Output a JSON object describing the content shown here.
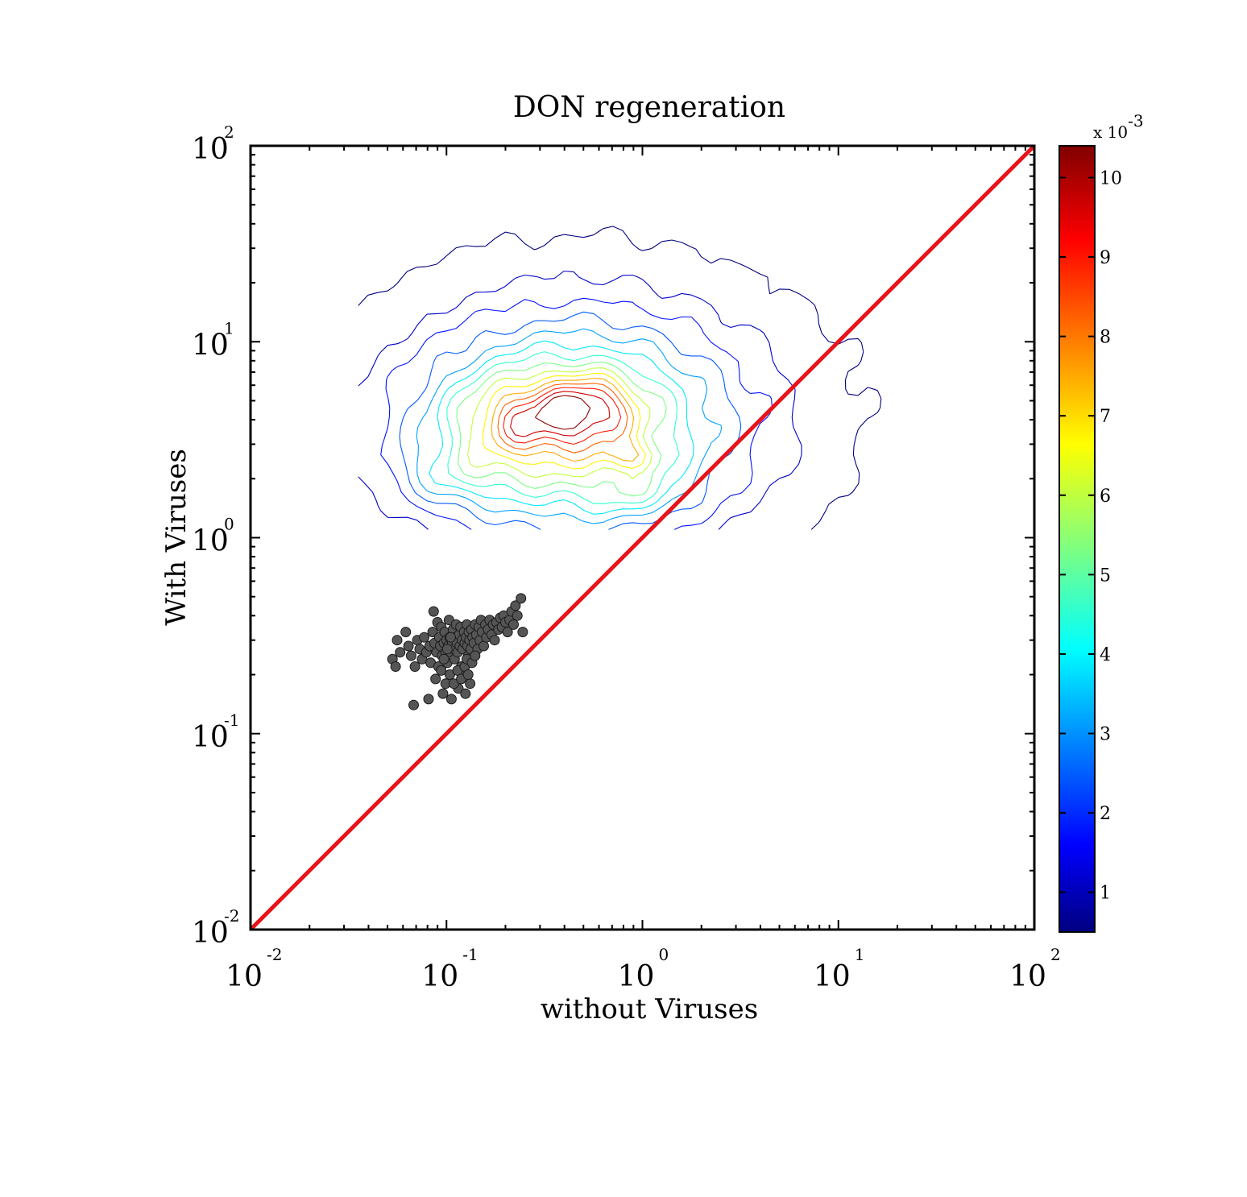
{
  "chart_data": {
    "type": "scatter",
    "title": "DON regeneration",
    "xlabel": "without Viruses",
    "ylabel": "With Viruses",
    "x_scale": "log",
    "y_scale": "log",
    "xlim": [
      0.01,
      100
    ],
    "ylim": [
      0.01,
      100
    ],
    "x_ticks": [
      {
        "base": "10",
        "exp": "-2",
        "value": 0.01
      },
      {
        "base": "10",
        "exp": "-1",
        "value": 0.1
      },
      {
        "base": "10",
        "exp": "0",
        "value": 1
      },
      {
        "base": "10",
        "exp": "1",
        "value": 10
      },
      {
        "base": "10",
        "exp": "2",
        "value": 100
      }
    ],
    "y_ticks": [
      {
        "base": "10",
        "exp": "-2",
        "value": 0.01
      },
      {
        "base": "10",
        "exp": "-1",
        "value": 0.1
      },
      {
        "base": "10",
        "exp": "0",
        "value": 1
      },
      {
        "base": "10",
        "exp": "1",
        "value": 10
      },
      {
        "base": "10",
        "exp": "2",
        "value": 100
      }
    ],
    "reference_line": {
      "type": "1:1",
      "color": "#e8141a",
      "x": [
        0.01,
        100
      ],
      "y": [
        0.01,
        100
      ]
    },
    "contour_density": {
      "colormap": "jet",
      "levels": [
        0.5,
        1.2,
        1.9,
        2.6,
        3.3,
        4.0,
        4.7,
        5.4,
        6.1,
        6.8,
        7.5,
        8.2,
        8.9,
        9.6,
        10.3
      ],
      "clip_min_y": 1.1,
      "peaks": [
        {
          "x": 0.25,
          "y": 4.0,
          "amplitude": 3.2,
          "sx": 0.22,
          "sy": 0.14
        },
        {
          "x": 0.55,
          "y": 4.6,
          "amplitude": 3.4,
          "sx": 0.16,
          "sy": 0.11
        },
        {
          "x": 0.9,
          "y": 2.6,
          "amplitude": 2.2,
          "sx": 0.1,
          "sy": 0.05
        },
        {
          "x": 0.42,
          "y": 3.6,
          "amplitude": 5.8,
          "sx": 0.55,
          "sy": 0.36
        },
        {
          "x": 0.6,
          "y": 5.0,
          "amplitude": 1.2,
          "sx": 0.9,
          "sy": 0.55
        },
        {
          "x": 0.11,
          "y": 2.1,
          "amplitude": 1.4,
          "sx": 0.2,
          "sy": 0.1
        },
        {
          "x": 0.95,
          "y": 1.7,
          "amplitude": 1.3,
          "sx": 0.18,
          "sy": 0.08
        }
      ]
    },
    "colorbar": {
      "multiplier_base": "x 10",
      "multiplier_exp": "-3",
      "min": 0.5,
      "max": 10.4,
      "ticks": [
        "1",
        "2",
        "3",
        "4",
        "5",
        "6",
        "7",
        "8",
        "9",
        "10"
      ]
    },
    "series": [
      {
        "marker": "circle",
        "color": "#555555",
        "points": [
          [
            0.053,
            0.24
          ],
          [
            0.055,
            0.22
          ],
          [
            0.056,
            0.3
          ],
          [
            0.058,
            0.26
          ],
          [
            0.062,
            0.33
          ],
          [
            0.064,
            0.28
          ],
          [
            0.066,
            0.25
          ],
          [
            0.068,
            0.14
          ],
          [
            0.069,
            0.22
          ],
          [
            0.071,
            0.3
          ],
          [
            0.073,
            0.27
          ],
          [
            0.075,
            0.24
          ],
          [
            0.077,
            0.31
          ],
          [
            0.079,
            0.26
          ],
          [
            0.081,
            0.15
          ],
          [
            0.082,
            0.28
          ],
          [
            0.083,
            0.23
          ],
          [
            0.085,
            0.33
          ],
          [
            0.086,
            0.42
          ],
          [
            0.087,
            0.29
          ],
          [
            0.089,
            0.26
          ],
          [
            0.09,
            0.37
          ],
          [
            0.091,
            0.22
          ],
          [
            0.092,
            0.31
          ],
          [
            0.093,
            0.28
          ],
          [
            0.094,
            0.35
          ],
          [
            0.095,
            0.25
          ],
          [
            0.096,
            0.16
          ],
          [
            0.097,
            0.29
          ],
          [
            0.098,
            0.33
          ],
          [
            0.099,
            0.26
          ],
          [
            0.1,
            0.3
          ],
          [
            0.101,
            0.23
          ],
          [
            0.102,
            0.28
          ],
          [
            0.103,
            0.38
          ],
          [
            0.104,
            0.31
          ],
          [
            0.105,
            0.26
          ],
          [
            0.106,
            0.15
          ],
          [
            0.107,
            0.29
          ],
          [
            0.108,
            0.34
          ],
          [
            0.109,
            0.27
          ],
          [
            0.11,
            0.24
          ],
          [
            0.111,
            0.31
          ],
          [
            0.112,
            0.36
          ],
          [
            0.113,
            0.29
          ],
          [
            0.114,
            0.26
          ],
          [
            0.115,
            0.17
          ],
          [
            0.116,
            0.32
          ],
          [
            0.117,
            0.28
          ],
          [
            0.118,
            0.35
          ],
          [
            0.119,
            0.22
          ],
          [
            0.12,
            0.3
          ],
          [
            0.121,
            0.27
          ],
          [
            0.122,
            0.2
          ],
          [
            0.123,
            0.33
          ],
          [
            0.124,
            0.29
          ],
          [
            0.125,
            0.16
          ],
          [
            0.126,
            0.31
          ],
          [
            0.127,
            0.36
          ],
          [
            0.128,
            0.28
          ],
          [
            0.129,
            0.25
          ],
          [
            0.13,
            0.33
          ],
          [
            0.131,
            0.3
          ],
          [
            0.132,
            0.18
          ],
          [
            0.133,
            0.27
          ],
          [
            0.134,
            0.34
          ],
          [
            0.136,
            0.31
          ],
          [
            0.138,
            0.29
          ],
          [
            0.14,
            0.36
          ],
          [
            0.142,
            0.32
          ],
          [
            0.144,
            0.27
          ],
          [
            0.146,
            0.35
          ],
          [
            0.148,
            0.3
          ],
          [
            0.15,
            0.38
          ],
          [
            0.152,
            0.33
          ],
          [
            0.155,
            0.28
          ],
          [
            0.158,
            0.36
          ],
          [
            0.16,
            0.31
          ],
          [
            0.163,
            0.34
          ],
          [
            0.166,
            0.38
          ],
          [
            0.17,
            0.32
          ],
          [
            0.173,
            0.36
          ],
          [
            0.176,
            0.3
          ],
          [
            0.18,
            0.37
          ],
          [
            0.184,
            0.34
          ],
          [
            0.188,
            0.39
          ],
          [
            0.192,
            0.35
          ],
          [
            0.196,
            0.4
          ],
          [
            0.2,
            0.37
          ],
          [
            0.205,
            0.33
          ],
          [
            0.21,
            0.38
          ],
          [
            0.215,
            0.42
          ],
          [
            0.22,
            0.36
          ],
          [
            0.225,
            0.45
          ],
          [
            0.23,
            0.4
          ],
          [
            0.24,
            0.49
          ],
          [
            0.245,
            0.33
          ],
          [
            0.088,
            0.19
          ],
          [
            0.094,
            0.21
          ],
          [
            0.099,
            0.18
          ],
          [
            0.104,
            0.2
          ],
          [
            0.109,
            0.18
          ],
          [
            0.114,
            0.21
          ],
          [
            0.119,
            0.19
          ],
          [
            0.124,
            0.22
          ],
          [
            0.129,
            0.2
          ],
          [
            0.127,
            0.24
          ],
          [
            0.135,
            0.23
          ],
          [
            0.14,
            0.25
          ],
          [
            0.097,
            0.24
          ],
          [
            0.101,
            0.27
          ],
          [
            0.105,
            0.31
          ]
        ]
      }
    ]
  }
}
